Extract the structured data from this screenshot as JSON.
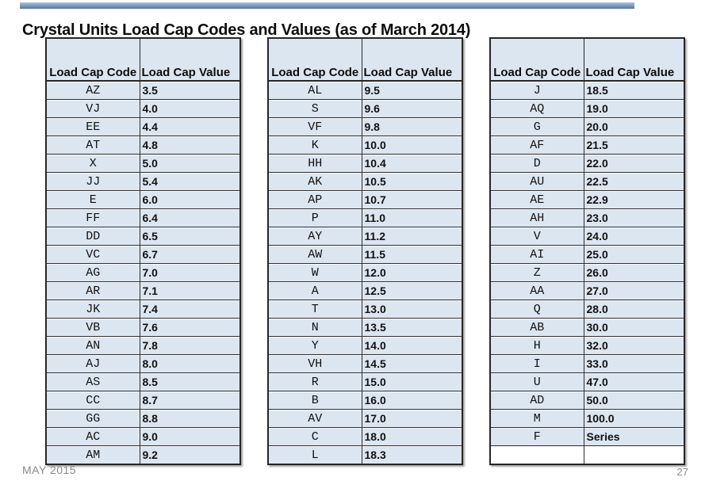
{
  "slide": {
    "title": "Crystal Units Load Cap Codes and Values (as of March 2014)",
    "footer_date": "MAY 2015",
    "page_number": "27",
    "accent_color": "#6f8fb6",
    "table_fill_color": "#dce6f1",
    "table_border_color": "#262626"
  },
  "table_header": {
    "code": "Load Cap Code",
    "value": "Load Cap Value"
  },
  "tables": [
    {
      "rows": [
        [
          "AZ",
          "3.5"
        ],
        [
          "VJ",
          "4.0"
        ],
        [
          "EE",
          "4.4"
        ],
        [
          "AT",
          "4.8"
        ],
        [
          "X",
          "5.0"
        ],
        [
          "JJ",
          "5.4"
        ],
        [
          "E",
          "6.0"
        ],
        [
          "FF",
          "6.4"
        ],
        [
          "DD",
          "6.5"
        ],
        [
          "VC",
          "6.7"
        ],
        [
          "AG",
          "7.0"
        ],
        [
          "AR",
          "7.1"
        ],
        [
          "JK",
          "7.4"
        ],
        [
          "VB",
          "7.6"
        ],
        [
          "AN",
          "7.8"
        ],
        [
          "AJ",
          "8.0"
        ],
        [
          "AS",
          "8.5"
        ],
        [
          "CC",
          "8.7"
        ],
        [
          "GG",
          "8.8"
        ],
        [
          "AC",
          "9.0"
        ],
        [
          "AM",
          "9.2"
        ]
      ]
    },
    {
      "rows": [
        [
          "AL",
          "9.5"
        ],
        [
          "S",
          "9.6"
        ],
        [
          "VF",
          "9.8"
        ],
        [
          "K",
          "10.0"
        ],
        [
          "HH",
          "10.4"
        ],
        [
          "AK",
          "10.5"
        ],
        [
          "AP",
          "10.7"
        ],
        [
          "P",
          "11.0"
        ],
        [
          "AY",
          "11.2"
        ],
        [
          "AW",
          "11.5"
        ],
        [
          "W",
          "12.0"
        ],
        [
          "A",
          "12.5"
        ],
        [
          "T",
          "13.0"
        ],
        [
          "N",
          "13.5"
        ],
        [
          "Y",
          "14.0"
        ],
        [
          "VH",
          "14.5"
        ],
        [
          "R",
          "15.0"
        ],
        [
          "B",
          "16.0"
        ],
        [
          "AV",
          "17.0"
        ],
        [
          "C",
          "18.0"
        ],
        [
          "L",
          "18.3"
        ]
      ]
    },
    {
      "rows": [
        [
          "J",
          "18.5"
        ],
        [
          "AQ",
          "19.0"
        ],
        [
          "G",
          "20.0"
        ],
        [
          "AF",
          "21.5"
        ],
        [
          "D",
          "22.0"
        ],
        [
          "AU",
          "22.5"
        ],
        [
          "AE",
          "22.9"
        ],
        [
          "AH",
          "23.0"
        ],
        [
          "V",
          "24.0"
        ],
        [
          "AI",
          "25.0"
        ],
        [
          "Z",
          "26.0"
        ],
        [
          "AA",
          "27.0"
        ],
        [
          "Q",
          "28.0"
        ],
        [
          "AB",
          "30.0"
        ],
        [
          "H",
          "32.0"
        ],
        [
          "I",
          "33.0"
        ],
        [
          "U",
          "47.0"
        ],
        [
          "AD",
          "50.0"
        ],
        [
          "M",
          "100.0"
        ],
        [
          "F",
          "Series"
        ],
        [
          "",
          ""
        ]
      ]
    }
  ]
}
